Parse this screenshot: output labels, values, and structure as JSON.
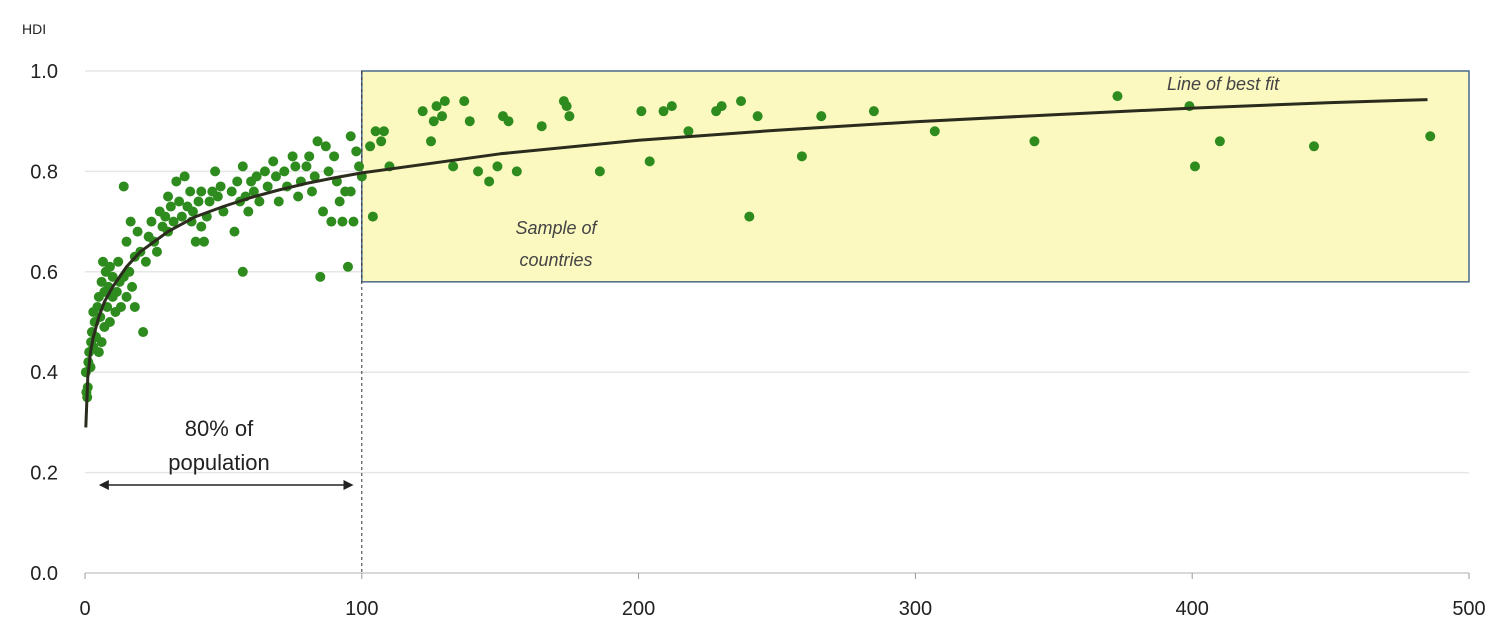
{
  "chart_data": {
    "type": "scatter",
    "ylabel": "HDI",
    "xlabel": "",
    "xlim": [
      0,
      500
    ],
    "ylim": [
      0,
      1
    ],
    "x_ticks": [
      "0",
      "100",
      "200",
      "300",
      "400",
      "500"
    ],
    "y_ticks": [
      "0.0",
      "0.2",
      "0.4",
      "0.6",
      "0.8",
      "1.0"
    ],
    "grid": "horizontal",
    "colors": {
      "points": "#2e8b1e",
      "fit_line": "#2b2b1e",
      "box_fill": "#fbf8c0",
      "box_border": "#4a6a8a",
      "grid": "#e6e6e6"
    },
    "annotations": {
      "best_fit": "Line of best fit",
      "sample_line1": "Sample of",
      "sample_line2": "countries",
      "population_line1": "80% of",
      "population_line2": "population"
    },
    "highlight": {
      "x_from": 100,
      "x_to": 500,
      "y_from": 0.58,
      "y_to": 1.0,
      "divider_x": 100,
      "arrow_x_from": 5,
      "arrow_x_to": 97
    },
    "fit_line": {
      "points": [
        [
          0.3,
          0.29
        ],
        [
          1,
          0.39
        ],
        [
          2,
          0.44
        ],
        [
          3,
          0.47
        ],
        [
          5,
          0.51
        ],
        [
          7,
          0.54
        ],
        [
          10,
          0.57
        ],
        [
          15,
          0.61
        ],
        [
          20,
          0.64
        ],
        [
          30,
          0.68
        ],
        [
          40,
          0.71
        ],
        [
          50,
          0.73
        ],
        [
          60,
          0.748
        ],
        [
          70,
          0.763
        ],
        [
          80,
          0.776
        ],
        [
          90,
          0.787
        ],
        [
          100,
          0.797
        ],
        [
          150,
          0.835
        ],
        [
          200,
          0.862
        ],
        [
          250,
          0.882
        ],
        [
          300,
          0.899
        ],
        [
          350,
          0.913
        ],
        [
          400,
          0.926
        ],
        [
          450,
          0.937
        ],
        [
          485,
          0.943
        ]
      ]
    },
    "series": [
      {
        "points": [
          [
            0.3,
            0.4
          ],
          [
            0.5,
            0.36
          ],
          [
            0.8,
            0.35
          ],
          [
            1,
            0.37
          ],
          [
            1.2,
            0.42
          ],
          [
            1.5,
            0.44
          ],
          [
            2,
            0.41
          ],
          [
            2.2,
            0.46
          ],
          [
            2.5,
            0.48
          ],
          [
            3,
            0.45
          ],
          [
            3,
            0.52
          ],
          [
            3.5,
            0.5
          ],
          [
            4,
            0.47
          ],
          [
            4.5,
            0.53
          ],
          [
            5,
            0.44
          ],
          [
            5,
            0.55
          ],
          [
            5.5,
            0.51
          ],
          [
            6,
            0.58
          ],
          [
            6,
            0.46
          ],
          [
            6.5,
            0.62
          ],
          [
            7,
            0.49
          ],
          [
            7,
            0.56
          ],
          [
            7.5,
            0.6
          ],
          [
            8,
            0.53
          ],
          [
            8.5,
            0.57
          ],
          [
            9,
            0.5
          ],
          [
            9,
            0.61
          ],
          [
            10,
            0.55
          ],
          [
            10,
            0.59
          ],
          [
            11,
            0.52
          ],
          [
            11.5,
            0.56
          ],
          [
            12,
            0.62
          ],
          [
            12.5,
            0.58
          ],
          [
            13,
            0.53
          ],
          [
            14,
            0.59
          ],
          [
            14,
            0.77
          ],
          [
            15,
            0.55
          ],
          [
            15,
            0.66
          ],
          [
            16,
            0.6
          ],
          [
            16.5,
            0.7
          ],
          [
            17,
            0.57
          ],
          [
            18,
            0.63
          ],
          [
            18,
            0.53
          ],
          [
            19,
            0.68
          ],
          [
            20,
            0.64
          ],
          [
            21,
            0.48
          ],
          [
            22,
            0.62
          ],
          [
            23,
            0.67
          ],
          [
            24,
            0.7
          ],
          [
            25,
            0.66
          ],
          [
            26,
            0.64
          ],
          [
            27,
            0.72
          ],
          [
            28,
            0.69
          ],
          [
            29,
            0.71
          ],
          [
            30,
            0.68
          ],
          [
            30,
            0.75
          ],
          [
            31,
            0.73
          ],
          [
            32,
            0.7
          ],
          [
            33,
            0.78
          ],
          [
            34,
            0.74
          ],
          [
            35,
            0.71
          ],
          [
            36,
            0.79
          ],
          [
            37,
            0.73
          ],
          [
            38,
            0.76
          ],
          [
            38.5,
            0.7
          ],
          [
            39,
            0.72
          ],
          [
            40,
            0.66
          ],
          [
            41,
            0.74
          ],
          [
            42,
            0.69
          ],
          [
            42,
            0.76
          ],
          [
            43,
            0.66
          ],
          [
            44,
            0.71
          ],
          [
            45,
            0.74
          ],
          [
            46,
            0.76
          ],
          [
            47,
            0.8
          ],
          [
            48,
            0.75
          ],
          [
            49,
            0.77
          ],
          [
            50,
            0.72
          ],
          [
            53,
            0.76
          ],
          [
            54,
            0.68
          ],
          [
            55,
            0.78
          ],
          [
            56,
            0.74
          ],
          [
            57,
            0.6
          ],
          [
            57,
            0.81
          ],
          [
            58,
            0.75
          ],
          [
            59,
            0.72
          ],
          [
            60,
            0.78
          ],
          [
            61,
            0.76
          ],
          [
            62,
            0.79
          ],
          [
            63,
            0.74
          ],
          [
            65,
            0.8
          ],
          [
            66,
            0.77
          ],
          [
            68,
            0.82
          ],
          [
            69,
            0.79
          ],
          [
            70,
            0.74
          ],
          [
            72,
            0.8
          ],
          [
            73,
            0.77
          ],
          [
            75,
            0.83
          ],
          [
            76,
            0.81
          ],
          [
            77,
            0.75
          ],
          [
            78,
            0.78
          ],
          [
            80,
            0.81
          ],
          [
            81,
            0.83
          ],
          [
            82,
            0.76
          ],
          [
            83,
            0.79
          ],
          [
            84,
            0.86
          ],
          [
            85,
            0.59
          ],
          [
            86,
            0.72
          ],
          [
            87,
            0.85
          ],
          [
            88,
            0.8
          ],
          [
            89,
            0.7
          ],
          [
            90,
            0.83
          ],
          [
            91,
            0.78
          ],
          [
            92,
            0.74
          ],
          [
            93,
            0.7
          ],
          [
            94,
            0.76
          ],
          [
            95,
            0.61
          ],
          [
            96,
            0.87
          ],
          [
            96,
            0.76
          ],
          [
            97,
            0.7
          ],
          [
            98,
            0.84
          ],
          [
            99,
            0.81
          ],
          [
            100,
            0.79
          ],
          [
            103,
            0.85
          ],
          [
            104,
            0.71
          ],
          [
            105,
            0.88
          ],
          [
            107,
            0.86
          ],
          [
            108,
            0.88
          ],
          [
            110,
            0.81
          ],
          [
            122,
            0.92
          ],
          [
            125,
            0.86
          ],
          [
            126,
            0.9
          ],
          [
            127,
            0.93
          ],
          [
            129,
            0.91
          ],
          [
            130,
            0.94
          ],
          [
            133,
            0.81
          ],
          [
            137,
            0.94
          ],
          [
            139,
            0.9
          ],
          [
            142,
            0.8
          ],
          [
            146,
            0.78
          ],
          [
            149,
            0.81
          ],
          [
            151,
            0.91
          ],
          [
            153,
            0.9
          ],
          [
            156,
            0.8
          ],
          [
            165,
            0.89
          ],
          [
            173,
            0.94
          ],
          [
            174,
            0.93
          ],
          [
            175,
            0.91
          ],
          [
            186,
            0.8
          ],
          [
            201,
            0.92
          ],
          [
            204,
            0.82
          ],
          [
            209,
            0.92
          ],
          [
            212,
            0.93
          ],
          [
            218,
            0.88
          ],
          [
            228,
            0.92
          ],
          [
            230,
            0.93
          ],
          [
            237,
            0.94
          ],
          [
            240,
            0.71
          ],
          [
            243,
            0.91
          ],
          [
            259,
            0.83
          ],
          [
            266,
            0.91
          ],
          [
            285,
            0.92
          ],
          [
            307,
            0.88
          ],
          [
            343,
            0.86
          ],
          [
            373,
            0.95
          ],
          [
            399,
            0.93
          ],
          [
            401,
            0.81
          ],
          [
            410,
            0.86
          ],
          [
            444,
            0.85
          ],
          [
            486,
            0.87
          ]
        ]
      }
    ]
  }
}
